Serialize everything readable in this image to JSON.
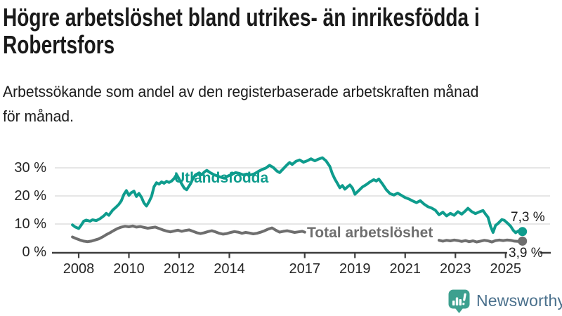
{
  "header": {
    "title_line1": "Högre arbetslöshet bland utrikes- än inrikesfödda i",
    "title_line2": "Robertsfors",
    "subtitle_line1": "Arbetssökande som andel av den registerbaserade arbetskraften månad",
    "subtitle_line2": "för månad."
  },
  "branding": {
    "wordmark": "Newsworthy",
    "icon": "newsworthy-chart-bubble-icon",
    "icon_color": "#3da08f",
    "wordmark_color": "#4a708c"
  },
  "chart_data": {
    "type": "line",
    "title": "Högre arbetslöshet bland utrikes- än inrikesfödda i Robertsfors",
    "subtitle": "Arbetssökande som andel av den registerbaserade arbetskraften månad för månad.",
    "grid": true,
    "legend_position": "inline-labels",
    "gridline_color": "#d8d8d8",
    "axis_color": "#3d3d3d",
    "x_range": [
      2007.7,
      2025.8
    ],
    "y_range": [
      0,
      34
    ],
    "x_ticks": [
      2008,
      2010,
      2012,
      2014,
      2017,
      2019,
      2021,
      2023,
      2025
    ],
    "y_ticks": [
      {
        "value": 0,
        "label": "0 %"
      },
      {
        "value": 10,
        "label": "10 %"
      },
      {
        "value": 20,
        "label": "20 %"
      },
      {
        "value": 30,
        "label": "30 %"
      }
    ],
    "series": [
      {
        "name": "Utlandsfödda",
        "color": "#0e9c8d",
        "end_value": 7.3,
        "end_value_label": "7,3 %",
        "segments": [
          [
            [
              2007.75,
              9.7
            ],
            [
              2007.85,
              9.0
            ],
            [
              2008.0,
              8.4
            ],
            [
              2008.1,
              9.6
            ],
            [
              2008.2,
              11.0
            ],
            [
              2008.3,
              11.4
            ],
            [
              2008.45,
              11.0
            ],
            [
              2008.55,
              11.5
            ],
            [
              2008.7,
              11.2
            ],
            [
              2008.85,
              11.9
            ],
            [
              2009.0,
              12.9
            ],
            [
              2009.1,
              13.8
            ],
            [
              2009.2,
              13.1
            ],
            [
              2009.35,
              14.9
            ],
            [
              2009.5,
              16.1
            ],
            [
              2009.6,
              17.0
            ],
            [
              2009.7,
              18.3
            ],
            [
              2009.8,
              20.5
            ],
            [
              2009.9,
              21.9
            ],
            [
              2010.0,
              20.2
            ],
            [
              2010.1,
              21.2
            ],
            [
              2010.2,
              21.7
            ],
            [
              2010.3,
              19.8
            ],
            [
              2010.4,
              20.9
            ],
            [
              2010.5,
              19.5
            ],
            [
              2010.6,
              17.5
            ],
            [
              2010.7,
              16.4
            ],
            [
              2010.8,
              17.9
            ],
            [
              2010.9,
              19.8
            ],
            [
              2011.0,
              23.3
            ],
            [
              2011.1,
              24.7
            ],
            [
              2011.2,
              24.2
            ],
            [
              2011.3,
              25.0
            ],
            [
              2011.4,
              24.5
            ],
            [
              2011.5,
              25.2
            ],
            [
              2011.6,
              24.8
            ],
            [
              2011.7,
              25.3
            ],
            [
              2011.8,
              26.2
            ],
            [
              2011.9,
              27.6
            ],
            [
              2012.0,
              26.0
            ],
            [
              2012.1,
              24.3
            ],
            [
              2012.2,
              22.8
            ],
            [
              2012.3,
              22.2
            ],
            [
              2012.45,
              24.3
            ],
            [
              2012.55,
              26.2
            ],
            [
              2012.65,
              27.5
            ],
            [
              2012.8,
              28.2
            ],
            [
              2012.9,
              27.5
            ],
            [
              2013.0,
              28.5
            ],
            [
              2013.1,
              29.1
            ],
            [
              2013.25,
              28.2
            ],
            [
              2013.4,
              27.5
            ],
            [
              2013.5,
              27.2
            ],
            [
              2013.65,
              26.7
            ],
            [
              2013.8,
              26.3
            ],
            [
              2013.95,
              27.1
            ],
            [
              2014.1,
              27.7
            ],
            [
              2014.25,
              28.3
            ],
            [
              2014.4,
              28.0
            ],
            [
              2014.55,
              27.5
            ],
            [
              2014.7,
              27.8
            ],
            [
              2014.85,
              27.5
            ],
            [
              2015.0,
              27.9
            ],
            [
              2015.15,
              28.7
            ],
            [
              2015.3,
              29.4
            ],
            [
              2015.45,
              29.9
            ],
            [
              2015.6,
              30.9
            ],
            [
              2015.75,
              30.1
            ],
            [
              2015.9,
              28.8
            ],
            [
              2016.0,
              28.3
            ],
            [
              2016.15,
              29.7
            ],
            [
              2016.3,
              31.1
            ],
            [
              2016.4,
              31.9
            ],
            [
              2016.5,
              31.2
            ],
            [
              2016.65,
              32.3
            ],
            [
              2016.8,
              32.8
            ],
            [
              2016.95,
              32.0
            ],
            [
              2017.1,
              32.5
            ],
            [
              2017.25,
              33.2
            ],
            [
              2017.4,
              32.5
            ],
            [
              2017.55,
              33.1
            ],
            [
              2017.7,
              33.6
            ],
            [
              2017.85,
              32.5
            ],
            [
              2018.0,
              30.5
            ],
            [
              2018.1,
              27.9
            ],
            [
              2018.2,
              26.0
            ],
            [
              2018.3,
              24.5
            ],
            [
              2018.4,
              22.9
            ],
            [
              2018.5,
              23.7
            ],
            [
              2018.6,
              22.4
            ],
            [
              2018.7,
              23.2
            ],
            [
              2018.8,
              23.9
            ],
            [
              2018.9,
              22.8
            ],
            [
              2019.0,
              20.6
            ],
            [
              2019.15,
              21.9
            ],
            [
              2019.3,
              23.2
            ],
            [
              2019.45,
              24.0
            ],
            [
              2019.6,
              25.0
            ],
            [
              2019.75,
              25.8
            ],
            [
              2019.85,
              25.3
            ],
            [
              2019.95,
              26.0
            ],
            [
              2020.1,
              24.2
            ],
            [
              2020.25,
              22.2
            ],
            [
              2020.4,
              20.8
            ],
            [
              2020.55,
              20.3
            ],
            [
              2020.7,
              21.0
            ],
            [
              2020.85,
              20.2
            ],
            [
              2021.0,
              19.4
            ],
            [
              2021.15,
              18.9
            ],
            [
              2021.3,
              18.2
            ],
            [
              2021.45,
              17.6
            ],
            [
              2021.6,
              18.3
            ],
            [
              2021.75,
              17.1
            ],
            [
              2021.9,
              16.2
            ],
            [
              2022.05,
              15.7
            ],
            [
              2022.2,
              14.9
            ],
            [
              2022.35,
              13.3
            ],
            [
              2022.5,
              14.2
            ],
            [
              2022.65,
              12.9
            ],
            [
              2022.8,
              13.8
            ],
            [
              2022.95,
              13.1
            ],
            [
              2023.1,
              14.4
            ],
            [
              2023.25,
              13.5
            ],
            [
              2023.4,
              14.7
            ],
            [
              2023.5,
              15.6
            ],
            [
              2023.65,
              14.4
            ],
            [
              2023.8,
              13.7
            ],
            [
              2023.95,
              14.3
            ],
            [
              2024.1,
              14.8
            ],
            [
              2024.2,
              13.5
            ],
            [
              2024.3,
              12.4
            ],
            [
              2024.4,
              9.2
            ],
            [
              2024.5,
              7.0
            ],
            [
              2024.6,
              9.5
            ],
            [
              2024.7,
              10.2
            ],
            [
              2024.85,
              11.6
            ],
            [
              2024.95,
              11.3
            ],
            [
              2025.1,
              10.1
            ],
            [
              2025.2,
              9.2
            ],
            [
              2025.3,
              7.8
            ],
            [
              2025.4,
              6.9
            ],
            [
              2025.5,
              7.5
            ],
            [
              2025.58,
              6.9
            ],
            [
              2025.67,
              7.3
            ]
          ]
        ]
      },
      {
        "name": "Total arbetslöshet",
        "color": "#6e6e6e",
        "end_value": 3.9,
        "end_value_label": "3,9 %",
        "segments": [
          [
            [
              2007.75,
              5.4
            ],
            [
              2007.9,
              4.8
            ],
            [
              2008.05,
              4.3
            ],
            [
              2008.2,
              3.9
            ],
            [
              2008.35,
              3.7
            ],
            [
              2008.5,
              3.9
            ],
            [
              2008.65,
              4.3
            ],
            [
              2008.8,
              4.7
            ],
            [
              2008.95,
              5.4
            ],
            [
              2009.1,
              6.2
            ],
            [
              2009.25,
              6.9
            ],
            [
              2009.4,
              7.7
            ],
            [
              2009.55,
              8.4
            ],
            [
              2009.7,
              8.9
            ],
            [
              2009.85,
              9.2
            ],
            [
              2010.0,
              9.0
            ],
            [
              2010.15,
              9.3
            ],
            [
              2010.3,
              8.9
            ],
            [
              2010.45,
              9.1
            ],
            [
              2010.6,
              8.8
            ],
            [
              2010.75,
              8.5
            ],
            [
              2010.9,
              8.7
            ],
            [
              2011.05,
              8.9
            ],
            [
              2011.2,
              8.4
            ],
            [
              2011.35,
              7.9
            ],
            [
              2011.5,
              7.5
            ],
            [
              2011.65,
              7.2
            ],
            [
              2011.8,
              7.5
            ],
            [
              2011.95,
              7.8
            ],
            [
              2012.1,
              7.4
            ],
            [
              2012.25,
              7.7
            ],
            [
              2012.4,
              7.9
            ],
            [
              2012.55,
              7.4
            ],
            [
              2012.7,
              6.9
            ],
            [
              2012.85,
              6.6
            ],
            [
              2013.0,
              6.9
            ],
            [
              2013.15,
              7.3
            ],
            [
              2013.3,
              7.6
            ],
            [
              2013.45,
              7.2
            ],
            [
              2013.6,
              6.7
            ],
            [
              2013.75,
              6.4
            ],
            [
              2013.9,
              6.6
            ],
            [
              2014.05,
              7.0
            ],
            [
              2014.2,
              7.3
            ],
            [
              2014.35,
              7.1
            ],
            [
              2014.5,
              6.7
            ],
            [
              2014.65,
              7.0
            ],
            [
              2014.8,
              6.8
            ],
            [
              2014.95,
              6.5
            ],
            [
              2015.1,
              6.7
            ],
            [
              2015.25,
              7.1
            ],
            [
              2015.4,
              7.6
            ],
            [
              2015.55,
              8.2
            ],
            [
              2015.7,
              8.6
            ],
            [
              2015.85,
              7.8
            ],
            [
              2016.0,
              7.1
            ],
            [
              2016.15,
              7.4
            ],
            [
              2016.3,
              7.6
            ],
            [
              2016.45,
              7.3
            ],
            [
              2016.6,
              7.0
            ],
            [
              2016.75,
              7.2
            ],
            [
              2016.9,
              7.4
            ],
            [
              2017.0,
              7.1
            ]
          ],
          [
            [
              2022.35,
              4.2
            ],
            [
              2022.5,
              3.9
            ],
            [
              2022.65,
              4.2
            ],
            [
              2022.8,
              4.0
            ],
            [
              2022.95,
              4.3
            ],
            [
              2023.1,
              4.1
            ],
            [
              2023.25,
              3.8
            ],
            [
              2023.4,
              4.1
            ],
            [
              2023.55,
              3.7
            ],
            [
              2023.7,
              4.0
            ],
            [
              2023.85,
              3.6
            ],
            [
              2024.0,
              3.9
            ],
            [
              2024.15,
              4.2
            ],
            [
              2024.3,
              4.0
            ],
            [
              2024.45,
              3.6
            ],
            [
              2024.6,
              4.1
            ],
            [
              2024.75,
              4.3
            ],
            [
              2024.9,
              4.1
            ],
            [
              2025.05,
              4.3
            ],
            [
              2025.2,
              4.2
            ],
            [
              2025.35,
              3.9
            ],
            [
              2025.5,
              3.8
            ],
            [
              2025.67,
              3.9
            ]
          ]
        ]
      }
    ]
  }
}
